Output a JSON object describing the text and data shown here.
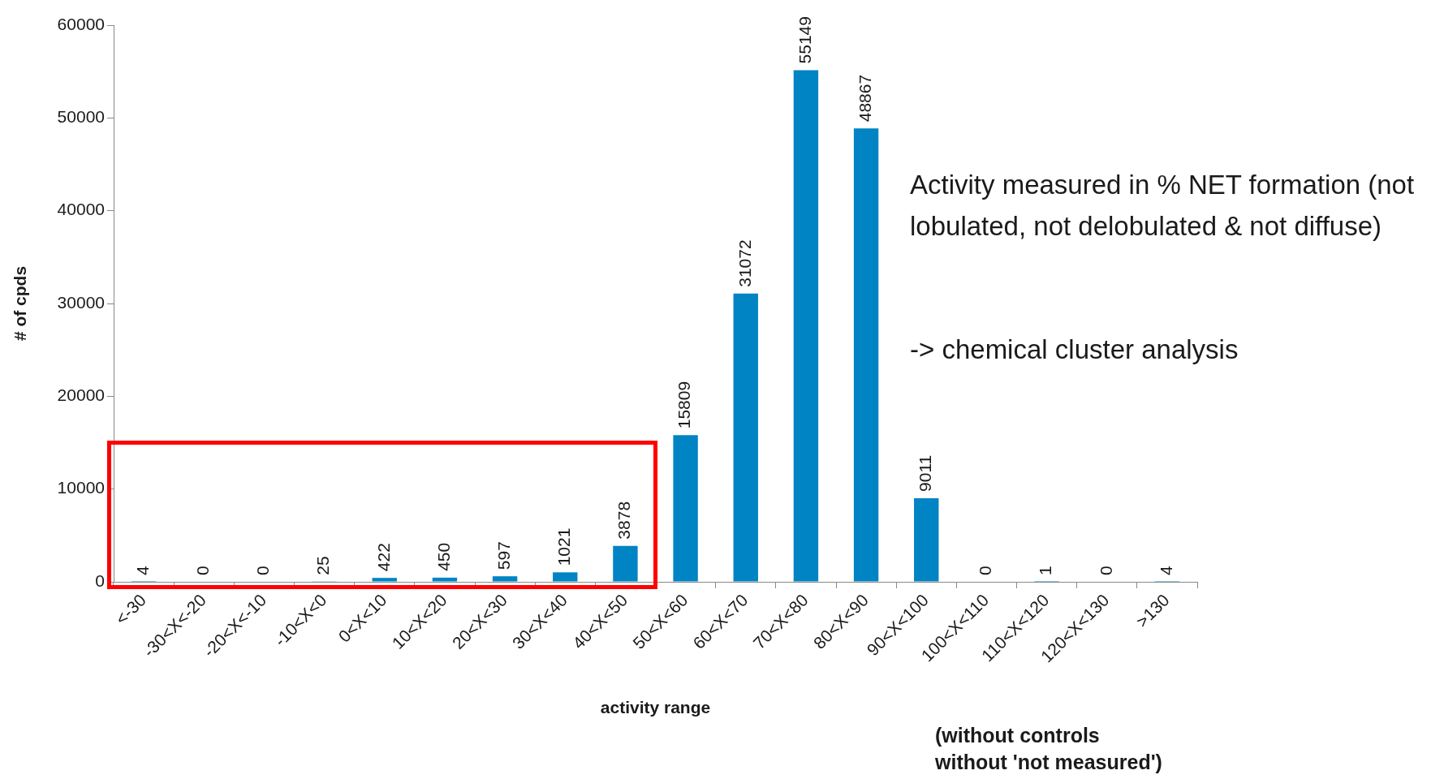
{
  "chart_data": {
    "type": "bar",
    "xlabel": "activity range",
    "ylabel": "# of cpds",
    "categories": [
      "<-30",
      "-30<X<-20",
      "-20<X<-10",
      "-10<X<0",
      "0<X<10",
      "10<X<20",
      "20<X<30",
      "30<X<40",
      "40<X<50",
      "50<X<60",
      "60<X<70",
      "70<X<80",
      "80<X<90",
      "90<X<100",
      "100<X<110",
      "110<X<120",
      "120<X<130",
      ">130"
    ],
    "values": [
      4,
      0,
      0,
      25,
      422,
      450,
      597,
      1021,
      3878,
      15809,
      31072,
      55149,
      48867,
      9011,
      0,
      1,
      0,
      4
    ],
    "color": "#0084c4",
    "ylim": [
      0,
      60000
    ],
    "yticks": [
      0,
      10000,
      20000,
      30000,
      40000,
      50000,
      60000
    ],
    "grid": false,
    "legend": false,
    "data_labels": true,
    "annotations": [
      "Activity measured in % NET formation (not lobulated, not delobulated & not diffuse)",
      "-> chemical cluster analysis",
      "(without controls\nwithout 'not measured')"
    ]
  }
}
